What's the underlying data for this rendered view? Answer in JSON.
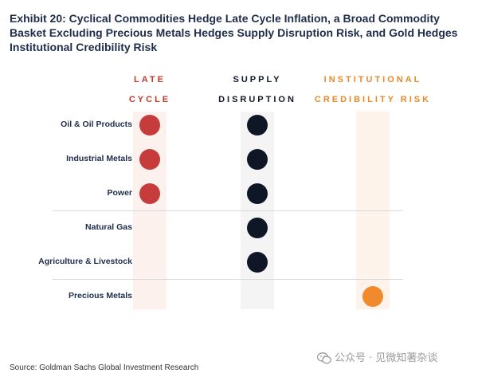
{
  "title": "Exhibit 20: Cyclical Commodities Hedge Late Cycle Inflation, a Broad Commodity Basket Excluding Precious Metals Hedges Supply Disruption Risk, and Gold Hedges Institutional Credibility Risk",
  "chart_data": {
    "type": "table",
    "columns": [
      {
        "label_line1": "LATE",
        "label_line2": "CYCLE",
        "color": "#c0392b",
        "bg_color": "#fdf1ee",
        "dot_color": "#c63b3b"
      },
      {
        "label_line1": "SUPPLY",
        "label_line2": "DISRUPTION",
        "color": "#111827",
        "bg_color": "#f4f4f4",
        "dot_color": "#0f1626"
      },
      {
        "label_line1": "INSTITUTIONAL",
        "label_line2": "CREDIBILITY RISK",
        "color": "#e8892b",
        "bg_color": "#fef3ea",
        "dot_color": "#f08a2c"
      }
    ],
    "rows": [
      {
        "label": "Oil & Oil Products",
        "hedges": [
          true,
          true,
          false
        ]
      },
      {
        "label": "Industrial Metals",
        "hedges": [
          true,
          true,
          false
        ]
      },
      {
        "label": "Power",
        "hedges": [
          true,
          true,
          false
        ]
      },
      {
        "label": "Natural Gas",
        "hedges": [
          false,
          true,
          false
        ]
      },
      {
        "label": "Agriculture & Livestock",
        "hedges": [
          false,
          true,
          false
        ]
      },
      {
        "label": "Precious Metals",
        "hedges": [
          false,
          false,
          true
        ]
      }
    ],
    "group_separators_after_row": [
      2,
      4
    ]
  },
  "source": "Source: Goldman Sachs Global Investment Research",
  "watermark": "公众号 · 见微知著杂谈"
}
